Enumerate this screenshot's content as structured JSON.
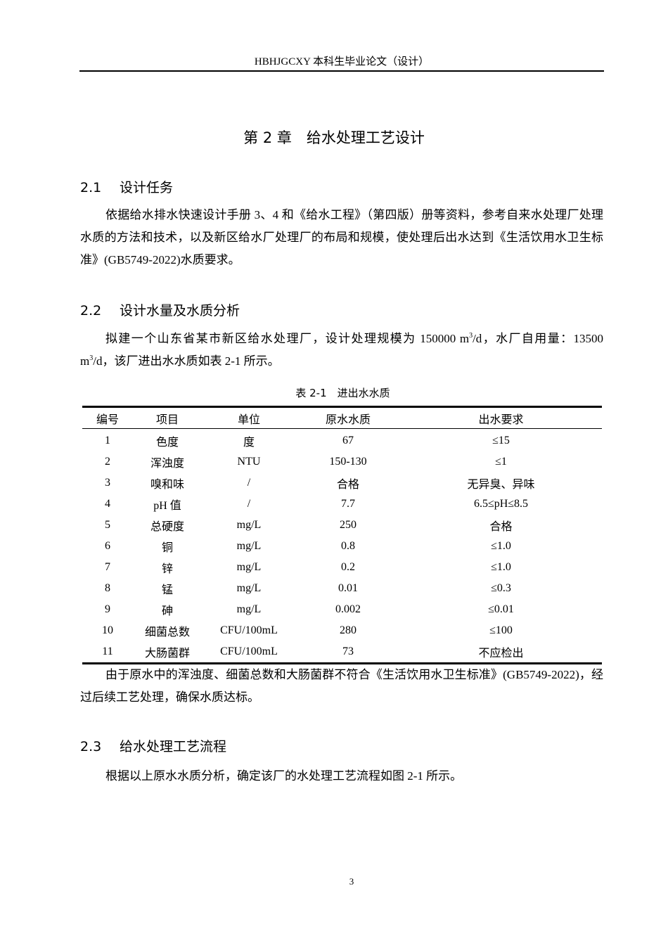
{
  "header": {
    "title": "HBHJGCXY 本科生毕业论文（设计）"
  },
  "chapter": {
    "title": "第 2 章　给水处理工艺设计"
  },
  "sections": [
    {
      "num": "2.1",
      "title": "设计任务"
    },
    {
      "num": "2.2",
      "title": "设计水量及水质分析"
    },
    {
      "num": "2.3",
      "title": "给水处理工艺流程"
    }
  ],
  "paragraphs": {
    "p1": "依据给水排水快速设计手册 3、4 和《给水工程》（第四版）册等资料，参考自来水处理厂处理水质的方法和技术，以及新区给水厂处理厂的布局和规模，使处理后出水达到《生活饮用水卫生标准》(GB5749-2022)水质要求。",
    "p2_a": "拟建一个山东省某市新区给水处理厂，设计处理规模为 150000  m",
    "p2_sup1": "3",
    "p2_b": "/d，水厂自用量：13500  m",
    "p2_sup2": "3",
    "p2_c": "/d，该厂进出水水质如表 2-1 所示。",
    "p3": "由于原水中的浑浊度、细菌总数和大肠菌群不符合《生活饮用水卫生标准》(GB5749-2022)，经过后续工艺处理，确保水质达标。",
    "p4": "根据以上原水水质分析，确定该厂的水处理工艺流程如图 2-1 所示。"
  },
  "table": {
    "caption": "表 2-1　进出水水质",
    "headers": [
      "编号",
      "项目",
      "单位",
      "原水水质",
      "出水要求"
    ],
    "rows": [
      [
        "1",
        "色度",
        "度",
        "67",
        "≤15"
      ],
      [
        "2",
        "浑浊度",
        "NTU",
        "150-130",
        "≤1"
      ],
      [
        "3",
        "嗅和味",
        "/",
        "合格",
        "无异臭、异味"
      ],
      [
        "4",
        "pH 值",
        "/",
        "7.7",
        "6.5≤pH≤8.5"
      ],
      [
        "5",
        "总硬度",
        "mg/L",
        "250",
        "合格"
      ],
      [
        "6",
        "铜",
        "mg/L",
        "0.8",
        "≤1.0"
      ],
      [
        "7",
        "锌",
        "mg/L",
        "0.2",
        "≤1.0"
      ],
      [
        "8",
        "锰",
        "mg/L",
        "0.01",
        "≤0.3"
      ],
      [
        "9",
        "砷",
        "mg/L",
        "0.002",
        "≤0.01"
      ],
      [
        "10",
        "细菌总数",
        "CFU/100mL",
        "280",
        "≤100"
      ],
      [
        "11",
        "大肠菌群",
        "CFU/100mL",
        "73",
        "不应检出"
      ]
    ]
  },
  "page_number": "3"
}
